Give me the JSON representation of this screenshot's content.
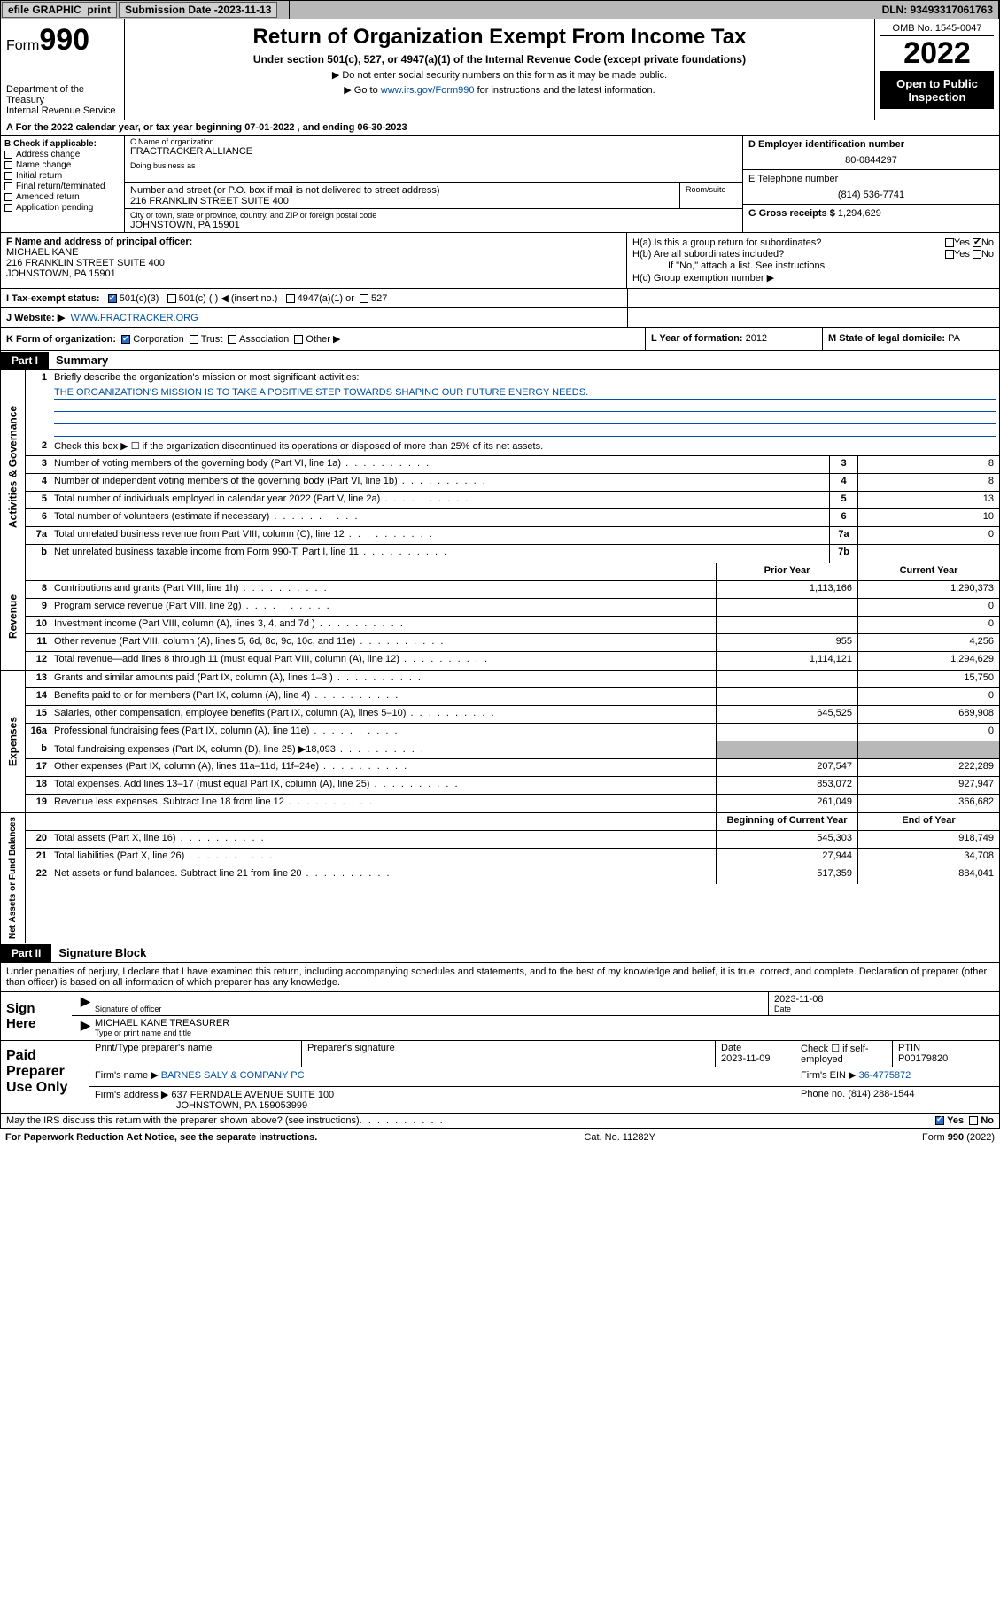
{
  "topbar": {
    "efile": "efile GRAPHIC",
    "print": "print",
    "sub_lbl": "Submission Date - ",
    "sub_date": "2023-11-13",
    "dln": "DLN: 93493317061763"
  },
  "header": {
    "form_lbl": "Form",
    "form_num": "990",
    "title": "Return of Organization Exempt From Income Tax",
    "subtitle": "Under section 501(c), 527, or 4947(a)(1) of the Internal Revenue Code (except private foundations)",
    "instr1": "▶ Do not enter social security numbers on this form as it may be made public.",
    "instr2_pre": "▶ Go to ",
    "instr2_link": "www.irs.gov/Form990",
    "instr2_post": " for instructions and the latest information.",
    "dept": "Department of the Treasury\nInternal Revenue Service",
    "omb": "OMB No. 1545-0047",
    "year": "2022",
    "open": "Open to Public Inspection"
  },
  "rowA": "A For the 2022 calendar year, or tax year beginning 07-01-2022    , and ending 06-30-2023",
  "B": {
    "lbl": "B Check if applicable:",
    "opts": [
      "Address change",
      "Name change",
      "Initial return",
      "Final return/terminated",
      "Amended return",
      "Application pending"
    ]
  },
  "C": {
    "name_lbl": "C Name of organization",
    "name": "FRACTRACKER ALLIANCE",
    "dba_lbl": "Doing business as",
    "addr_lbl": "Number and street (or P.O. box if mail is not delivered to street address)",
    "room_lbl": "Room/suite",
    "addr": "216 FRANKLIN STREET SUITE 400",
    "city_lbl": "City or town, state or province, country, and ZIP or foreign postal code",
    "city": "JOHNSTOWN, PA  15901"
  },
  "D": {
    "lbl": "D Employer identification number",
    "val": "80-0844297"
  },
  "E": {
    "lbl": "E Telephone number",
    "val": "(814) 536-7741"
  },
  "G": {
    "lbl": "G Gross receipts $",
    "val": "1,294,629"
  },
  "F": {
    "lbl": "F  Name and address of principal officer:",
    "name": "MICHAEL KANE",
    "addr1": "216 FRANKLIN STREET SUITE 400",
    "addr2": "JOHNSTOWN, PA  15901"
  },
  "H": {
    "a": "H(a)  Is this a group return for subordinates?",
    "b": "H(b)  Are all subordinates included?",
    "b2": "If \"No,\" attach a list. See instructions.",
    "c": "H(c)  Group exemption number ▶",
    "yes": "Yes",
    "no": "No"
  },
  "I": {
    "lbl": "I    Tax-exempt status:",
    "o1": "501(c)(3)",
    "o2": "501(c) (   ) ◀ (insert no.)",
    "o3": "4947(a)(1) or",
    "o4": "527"
  },
  "J": {
    "lbl": "J    Website: ▶",
    "val": "WWW.FRACTRACKER.ORG"
  },
  "K": {
    "lbl": "K Form of organization:",
    "o1": "Corporation",
    "o2": "Trust",
    "o3": "Association",
    "o4": "Other ▶"
  },
  "L": {
    "lbl": "L Year of formation:",
    "val": "2012"
  },
  "M": {
    "lbl": "M State of legal domicile:",
    "val": "PA"
  },
  "part1": {
    "label": "Part I",
    "title": "Summary"
  },
  "part2": {
    "label": "Part II",
    "title": "Signature Block"
  },
  "mission": {
    "q": "Briefly describe the organization's mission or most significant activities:",
    "a": "THE ORGANIZATION'S MISSION IS TO TAKE A POSITIVE STEP TOWARDS SHAPING OUR FUTURE ENERGY NEEDS."
  },
  "line2": "Check this box ▶ ☐  if the organization discontinued its operations or disposed of more than 25% of its net assets.",
  "rows_gov": [
    {
      "n": "3",
      "d": "Number of voting members of the governing body (Part VI, line 1a)",
      "box": "3",
      "v": "8"
    },
    {
      "n": "4",
      "d": "Number of independent voting members of the governing body (Part VI, line 1b)",
      "box": "4",
      "v": "8"
    },
    {
      "n": "5",
      "d": "Total number of individuals employed in calendar year 2022 (Part V, line 2a)",
      "box": "5",
      "v": "13"
    },
    {
      "n": "6",
      "d": "Total number of volunteers (estimate if necessary)",
      "box": "6",
      "v": "10"
    },
    {
      "n": "7a",
      "d": "Total unrelated business revenue from Part VIII, column (C), line 12",
      "box": "7a",
      "v": "0"
    },
    {
      "n": "b",
      "d": "Net unrelated business taxable income from Form 990-T, Part I, line 11",
      "box": "7b",
      "v": ""
    }
  ],
  "hdr_cols": {
    "prior": "Prior Year",
    "current": "Current Year",
    "begin": "Beginning of Current Year",
    "end": "End of Year"
  },
  "rows_rev": [
    {
      "n": "8",
      "d": "Contributions and grants (Part VIII, line 1h)",
      "p": "1,113,166",
      "c": "1,290,373"
    },
    {
      "n": "9",
      "d": "Program service revenue (Part VIII, line 2g)",
      "p": "",
      "c": "0"
    },
    {
      "n": "10",
      "d": "Investment income (Part VIII, column (A), lines 3, 4, and 7d )",
      "p": "",
      "c": "0"
    },
    {
      "n": "11",
      "d": "Other revenue (Part VIII, column (A), lines 5, 6d, 8c, 9c, 10c, and 11e)",
      "p": "955",
      "c": "4,256"
    },
    {
      "n": "12",
      "d": "Total revenue—add lines 8 through 11 (must equal Part VIII, column (A), line 12)",
      "p": "1,114,121",
      "c": "1,294,629"
    }
  ],
  "rows_exp": [
    {
      "n": "13",
      "d": "Grants and similar amounts paid (Part IX, column (A), lines 1–3 )",
      "p": "",
      "c": "15,750"
    },
    {
      "n": "14",
      "d": "Benefits paid to or for members (Part IX, column (A), line 4)",
      "p": "",
      "c": "0"
    },
    {
      "n": "15",
      "d": "Salaries, other compensation, employee benefits (Part IX, column (A), lines 5–10)",
      "p": "645,525",
      "c": "689,908"
    },
    {
      "n": "16a",
      "d": "Professional fundraising fees (Part IX, column (A), line 11e)",
      "p": "",
      "c": "0"
    },
    {
      "n": "b",
      "d": "Total fundraising expenses (Part IX, column (D), line 25) ▶18,093",
      "p": "GREY",
      "c": "GREY"
    },
    {
      "n": "17",
      "d": "Other expenses (Part IX, column (A), lines 11a–11d, 11f–24e)",
      "p": "207,547",
      "c": "222,289"
    },
    {
      "n": "18",
      "d": "Total expenses. Add lines 13–17 (must equal Part IX, column (A), line 25)",
      "p": "853,072",
      "c": "927,947"
    },
    {
      "n": "19",
      "d": "Revenue less expenses. Subtract line 18 from line 12",
      "p": "261,049",
      "c": "366,682"
    }
  ],
  "rows_net": [
    {
      "n": "20",
      "d": "Total assets (Part X, line 16)",
      "p": "545,303",
      "c": "918,749"
    },
    {
      "n": "21",
      "d": "Total liabilities (Part X, line 26)",
      "p": "27,944",
      "c": "34,708"
    },
    {
      "n": "22",
      "d": "Net assets or fund balances. Subtract line 21 from line 20",
      "p": "517,359",
      "c": "884,041"
    }
  ],
  "sig_intro": "Under penalties of perjury, I declare that I have examined this return, including accompanying schedules and statements, and to the best of my knowledge and belief, it is true, correct, and complete. Declaration of preparer (other than officer) is based on all information of which preparer has any knowledge.",
  "sign": {
    "here": "Sign Here",
    "sig_lbl": "Signature of officer",
    "date_lbl": "Date",
    "date": "2023-11-08",
    "name": "MICHAEL KANE  TREASURER",
    "name_lbl": "Type or print name and title"
  },
  "prep": {
    "title": "Paid Preparer Use Only",
    "h1": "Print/Type preparer's name",
    "h2": "Preparer's signature",
    "h3": "Date",
    "date": "2023-11-09",
    "h4": "Check ☐ if self-employed",
    "h5": "PTIN",
    "ptin": "P00179820",
    "firm_lbl": "Firm's name    ▶",
    "firm": "BARNES SALY & COMPANY PC",
    "ein_lbl": "Firm's EIN ▶",
    "ein": "36-4775872",
    "addr_lbl": "Firm's address ▶",
    "addr1": "637 FERNDALE AVENUE SUITE 100",
    "addr2": "JOHNSTOWN, PA  159053999",
    "phone_lbl": "Phone no.",
    "phone": "(814) 288-1544"
  },
  "foot": {
    "discuss": "May the IRS discuss this return with the preparer shown above? (see instructions)",
    "yes": "Yes",
    "no": "No",
    "pra": "For Paperwork Reduction Act Notice, see the separate instructions.",
    "cat": "Cat. No. 11282Y",
    "form": "Form 990 (2022)"
  },
  "vlabels": {
    "gov": "Activities & Governance",
    "rev": "Revenue",
    "exp": "Expenses",
    "net": "Net Assets or Fund Balances"
  }
}
